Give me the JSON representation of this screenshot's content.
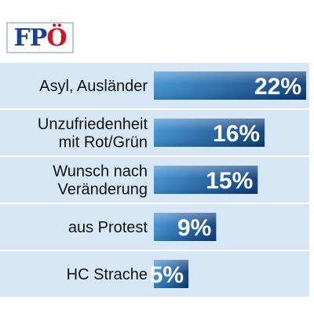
{
  "logo": {
    "text": "FPÖ",
    "part1": "FP",
    "part2": "Ö",
    "blue": "#1c3f96",
    "red": "#d9121f"
  },
  "colors": {
    "row_bg": "#d7e6f5",
    "row_divider": "#ffffff",
    "bar_light": "#3c8fd2",
    "bar_dark": "#0a3a78"
  },
  "chart_data": {
    "type": "bar",
    "orientation": "horizontal",
    "categories": [
      [
        "Asyl, Ausländer"
      ],
      [
        "Unzufriedenheit",
        "mit Rot/Grün"
      ],
      [
        "Wunsch nach",
        "Veränderung"
      ],
      [
        "aus Protest"
      ],
      [
        "HC Strache"
      ]
    ],
    "values": [
      22,
      16,
      15,
      9,
      5
    ],
    "value_labels": [
      "22%",
      "16%",
      "15%",
      "9%",
      "5%"
    ],
    "unit": "%",
    "xlim": [
      0,
      22
    ],
    "grid": false,
    "legend": "none"
  }
}
